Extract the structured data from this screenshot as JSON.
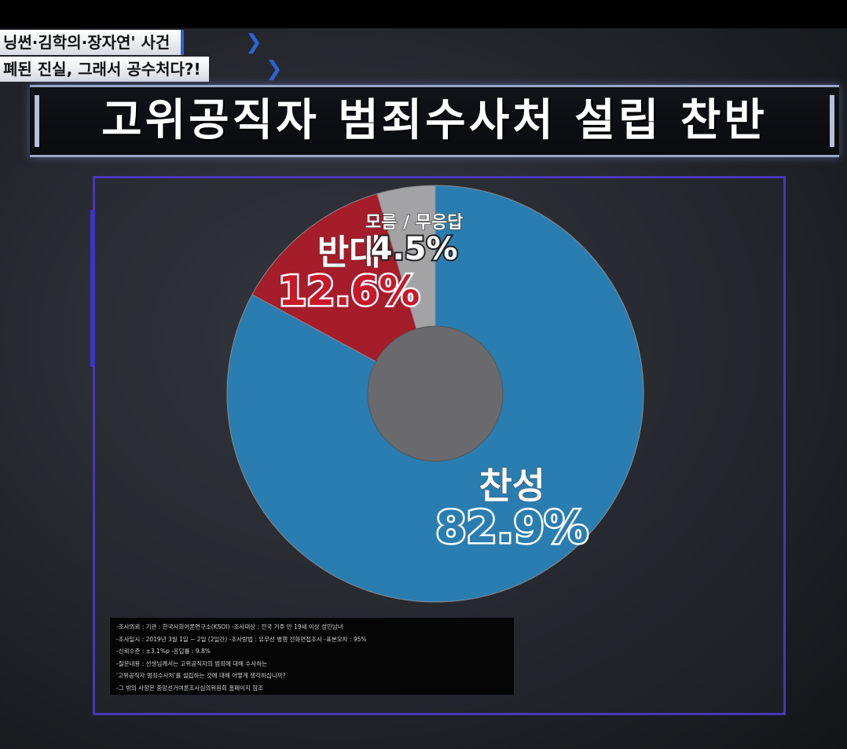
{
  "header": {
    "tag_line1": "닝썬·김학의·장자연' 사건",
    "tag_line2": "폐된 진실, 그래서 공수처다?!",
    "title": "고위공직자 범죄수사처 설립 찬반"
  },
  "chart_data": {
    "type": "pie",
    "style": "donut",
    "slices": [
      {
        "label": "찬성",
        "value": 82.9,
        "display": "82.9%",
        "color": "#2a7db0"
      },
      {
        "label": "반대",
        "value": 12.6,
        "display": "12.6%",
        "color": "#a51c2a"
      },
      {
        "label": "모름 / 무응답",
        "value": 4.5,
        "display": "4.5%",
        "color": "#a3a3a6"
      }
    ],
    "center_color": "#6a6a6e",
    "label_colors": {
      "찬성": "#2a7db0",
      "반대": "#c8182a",
      "모름 / 무응답": "#222222"
    }
  },
  "notes": [
    "-조사의뢰 : 기관 : 한국사회여론연구소(KSOI) -조사대상 : 전국 거주 만 19세 이상 성인남녀",
    "-조사일시 : 2019년 3월 1일 ~ 2일 (2일간) -조사방법 : 유무선 병행 전화면접조사 -표본오차 : 95%",
    "-신뢰수준 : ±3.1%p -응답률 : 9.8%",
    "-질문내용 : 선생님께서는 고위공직자의 범죄에 대해 수사하는",
    "'고위공직자 범죄수사처'를 설립하는 것에 대해 어떻게 생각하십니까?",
    "-그 밖의 사항은 중앙선거여론조사심의위원회 홈페이지 참조"
  ]
}
